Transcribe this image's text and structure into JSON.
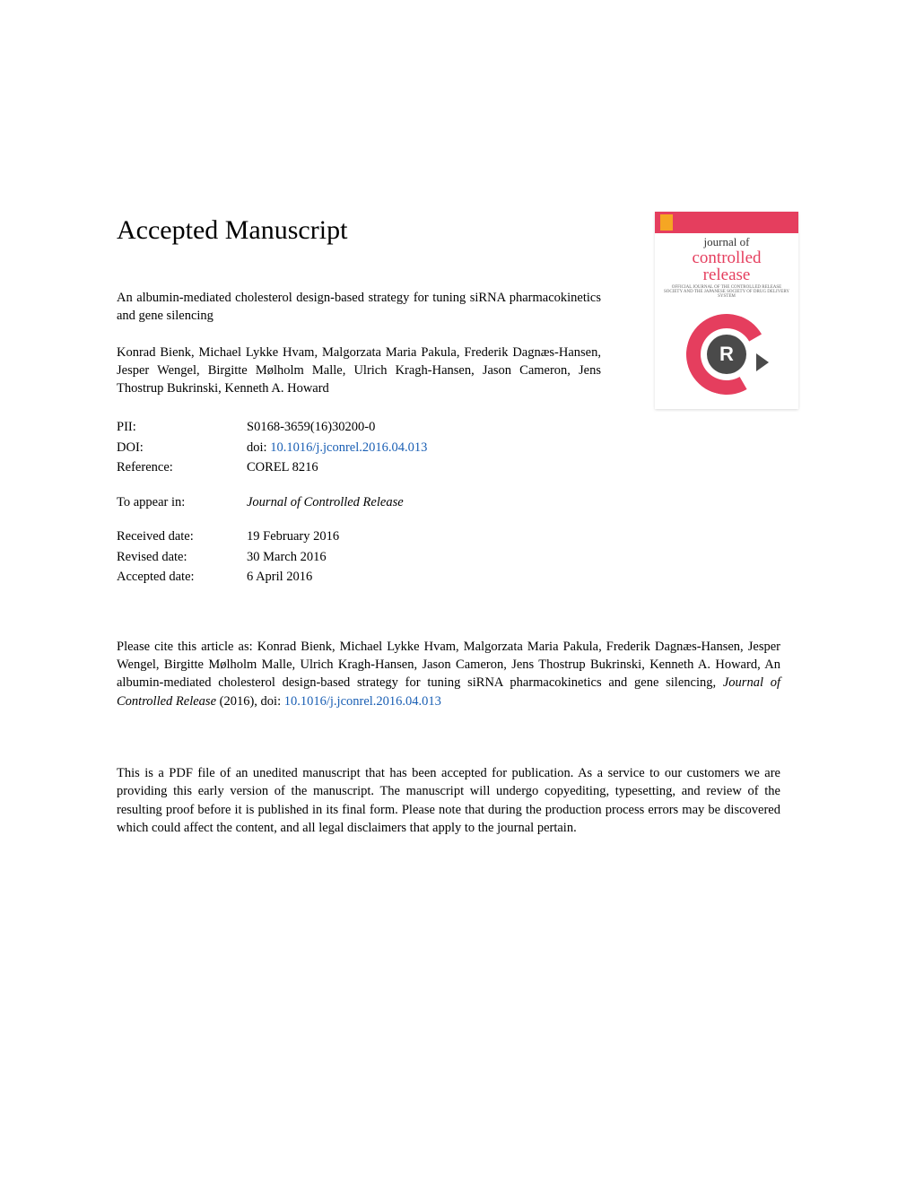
{
  "heading": "Accepted Manuscript",
  "journal_cover": {
    "pretitle": "journal of",
    "main1": "controlled",
    "main2": "release",
    "subtitle": "OFFICIAL JOURNAL OF THE CONTROLLED RELEASE SOCIETY AND THE JAPANESE SOCIETY OF DRUG DELIVERY SYSTEM",
    "logo_letter": "R"
  },
  "article": {
    "title": "An albumin-mediated cholesterol design-based strategy for tuning siRNA pharmacokinetics and gene silencing",
    "authors": "Konrad Bienk, Michael Lykke Hvam, Malgorzata Maria Pakula, Frederik Dagnæs-Hansen, Jesper Wengel, Birgitte Mølholm Malle, Ulrich Kragh-Hansen, Jason Cameron, Jens Thostrup Bukrinski, Kenneth A. Howard"
  },
  "meta": {
    "pii_label": "PII:",
    "pii": "S0168-3659(16)30200-0",
    "doi_label": "DOI:",
    "doi_prefix": "doi: ",
    "doi_link": "10.1016/j.jconrel.2016.04.013",
    "ref_label": "Reference:",
    "ref": "COREL 8216",
    "appear_label": "To appear in:",
    "appear": "Journal of Controlled Release",
    "received_label": "Received date:",
    "received": "19 February 2016",
    "revised_label": "Revised date:",
    "revised": "30 March 2016",
    "accepted_label": "Accepted date:",
    "accepted": "6 April 2016"
  },
  "citation": {
    "pre": "Please cite this article as: Konrad Bienk, Michael Lykke Hvam, Malgorzata Maria Pakula, Frederik Dagnæs-Hansen, Jesper Wengel, Birgitte Mølholm Malle, Ulrich Kragh-Hansen, Jason Cameron, Jens Thostrup Bukrinski, Kenneth A. Howard, An albumin-mediated cholesterol design-based strategy for tuning siRNA pharmacokinetics and gene silencing, ",
    "journal": "Journal of Controlled Release",
    "year": " (2016), doi: ",
    "doi_link": "10.1016/j.jconrel.2016.04.013"
  },
  "disclaimer": "This is a PDF file of an unedited manuscript that has been accepted for publication. As a service to our customers we are providing this early version of the manuscript. The manuscript will undergo copyediting, typesetting, and review of the resulting proof before it is published in its final form. Please note that during the production process errors may be discovered which could affect the content, and all legal disclaimers that apply to the journal pertain.",
  "colors": {
    "link": "#1a5fb4",
    "journal_accent": "#e53e5e",
    "text": "#000000",
    "background": "#ffffff"
  }
}
